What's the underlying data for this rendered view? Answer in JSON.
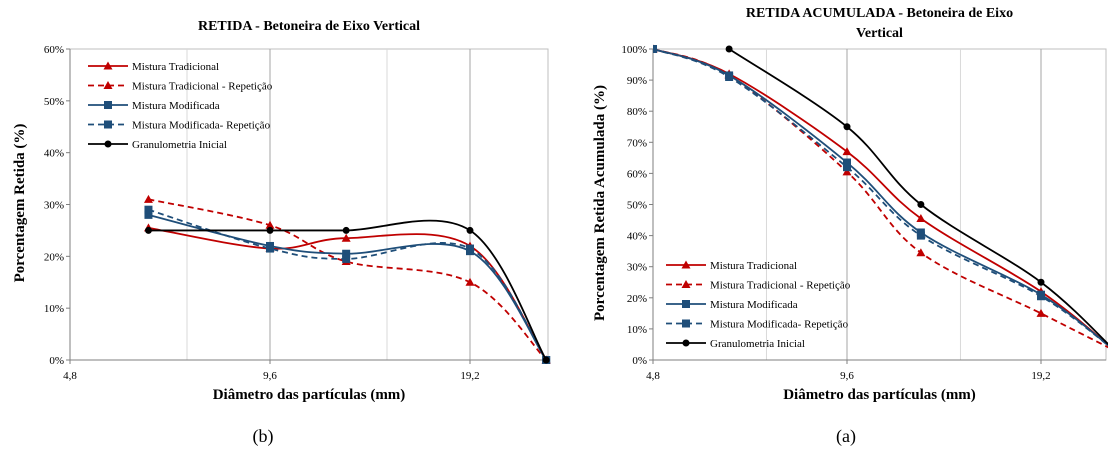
{
  "chart_data": [
    {
      "type": "line",
      "title": "RETIDA  - Betoneira de Eixo Vertical",
      "xlabel": "Diâmetro das partículas (mm)",
      "ylabel": "Porcentagem Retida   (%)",
      "caption": "(b)",
      "x_ticks": [
        "4,8",
        "9,6",
        "19,2"
      ],
      "y_ticks": [
        "0%",
        "10%",
        "20%",
        "30%",
        "40%",
        "50%",
        "60%"
      ],
      "ylim": [
        0,
        60
      ],
      "grid": "vertical",
      "legend_position": "top-left",
      "series": [
        {
          "name": "Mistura Tradicional",
          "color": "#c00000",
          "dash": "solid",
          "marker": "triangle",
          "points": [
            [
              6.3,
              25.5
            ],
            [
              9.6,
              21.5
            ],
            [
              12.5,
              23.5
            ],
            [
              19.2,
              22
            ],
            [
              25,
              0
            ]
          ]
        },
        {
          "name": "Mistura Tradicional - Repetição",
          "color": "#c00000",
          "dash": "dashed",
          "marker": "triangle",
          "points": [
            [
              6.3,
              31
            ],
            [
              9.6,
              26
            ],
            [
              12.5,
              19
            ],
            [
              19.2,
              15
            ],
            [
              25,
              0
            ]
          ]
        },
        {
          "name": "Mistura Modificada",
          "color": "#1f4e79",
          "dash": "solid",
          "marker": "square",
          "points": [
            [
              6.3,
              28
            ],
            [
              9.6,
              22
            ],
            [
              12.5,
              20.5
            ],
            [
              19.2,
              21
            ],
            [
              25,
              0
            ]
          ]
        },
        {
          "name": "Mistura Modificada- Repetição",
          "color": "#1f4e79",
          "dash": "dashed",
          "marker": "square",
          "points": [
            [
              6.3,
              29
            ],
            [
              9.6,
              21.5
            ],
            [
              12.5,
              19.5
            ],
            [
              19.2,
              21.5
            ],
            [
              25,
              0
            ]
          ]
        },
        {
          "name": "Granulometria Inicial",
          "color": "#000000",
          "dash": "solid",
          "marker": "circle",
          "points": [
            [
              6.3,
              25
            ],
            [
              9.6,
              25
            ],
            [
              12.5,
              25
            ],
            [
              19.2,
              25
            ],
            [
              25,
              0
            ]
          ]
        }
      ]
    },
    {
      "type": "line",
      "title": "RETIDA ACUMULADA  - Betoneira de Eixo Vertical",
      "title_lines": [
        "RETIDA ACUMULADA  - Betoneira de Eixo",
        "Vertical"
      ],
      "xlabel": "Diâmetro das partículas (mm)",
      "ylabel": "Porcentagem Retida Acumulada  (%)",
      "caption": "(a)",
      "x_ticks": [
        "4,8",
        "9,6",
        "19,2"
      ],
      "y_ticks": [
        "0%",
        "10%",
        "20%",
        "30%",
        "40%",
        "50%",
        "60%",
        "70%",
        "80%",
        "90%",
        "100%"
      ],
      "ylim": [
        0,
        100
      ],
      "grid": "vertical",
      "legend_position": "bottom-left",
      "series": [
        {
          "name": "Mistura Tradicional",
          "color": "#c00000",
          "dash": "solid",
          "marker": "triangle",
          "points": [
            [
              4.8,
              100
            ],
            [
              6.3,
              92
            ],
            [
              9.6,
              67
            ],
            [
              12.5,
              45.5
            ],
            [
              19.2,
              22
            ],
            [
              25,
              3
            ]
          ]
        },
        {
          "name": "Mistura Tradicional - Repetição",
          "color": "#c00000",
          "dash": "dashed",
          "marker": "triangle",
          "points": [
            [
              4.8,
              100
            ],
            [
              6.3,
              91.5
            ],
            [
              9.6,
              60.5
            ],
            [
              12.5,
              34.5
            ],
            [
              19.2,
              15
            ],
            [
              25,
              3
            ]
          ]
        },
        {
          "name": "Mistura Modificada",
          "color": "#1f4e79",
          "dash": "solid",
          "marker": "square",
          "points": [
            [
              4.8,
              100
            ],
            [
              6.3,
              91.5
            ],
            [
              9.6,
              63.5
            ],
            [
              12.5,
              41
            ],
            [
              19.2,
              21
            ],
            [
              25,
              3
            ]
          ]
        },
        {
          "name": "Mistura Modificada- Repetição",
          "color": "#1f4e79",
          "dash": "dashed",
          "marker": "square",
          "points": [
            [
              4.8,
              100
            ],
            [
              6.3,
              91
            ],
            [
              9.6,
              62
            ],
            [
              12.5,
              40
            ],
            [
              19.2,
              20.5
            ],
            [
              25,
              3
            ]
          ]
        },
        {
          "name": "Granulometria Inicial",
          "color": "#000000",
          "dash": "solid",
          "marker": "circle",
          "points": [
            [
              6.3,
              100
            ],
            [
              9.6,
              75
            ],
            [
              12.5,
              50
            ],
            [
              19.2,
              25
            ],
            [
              25,
              3
            ]
          ]
        }
      ]
    }
  ]
}
